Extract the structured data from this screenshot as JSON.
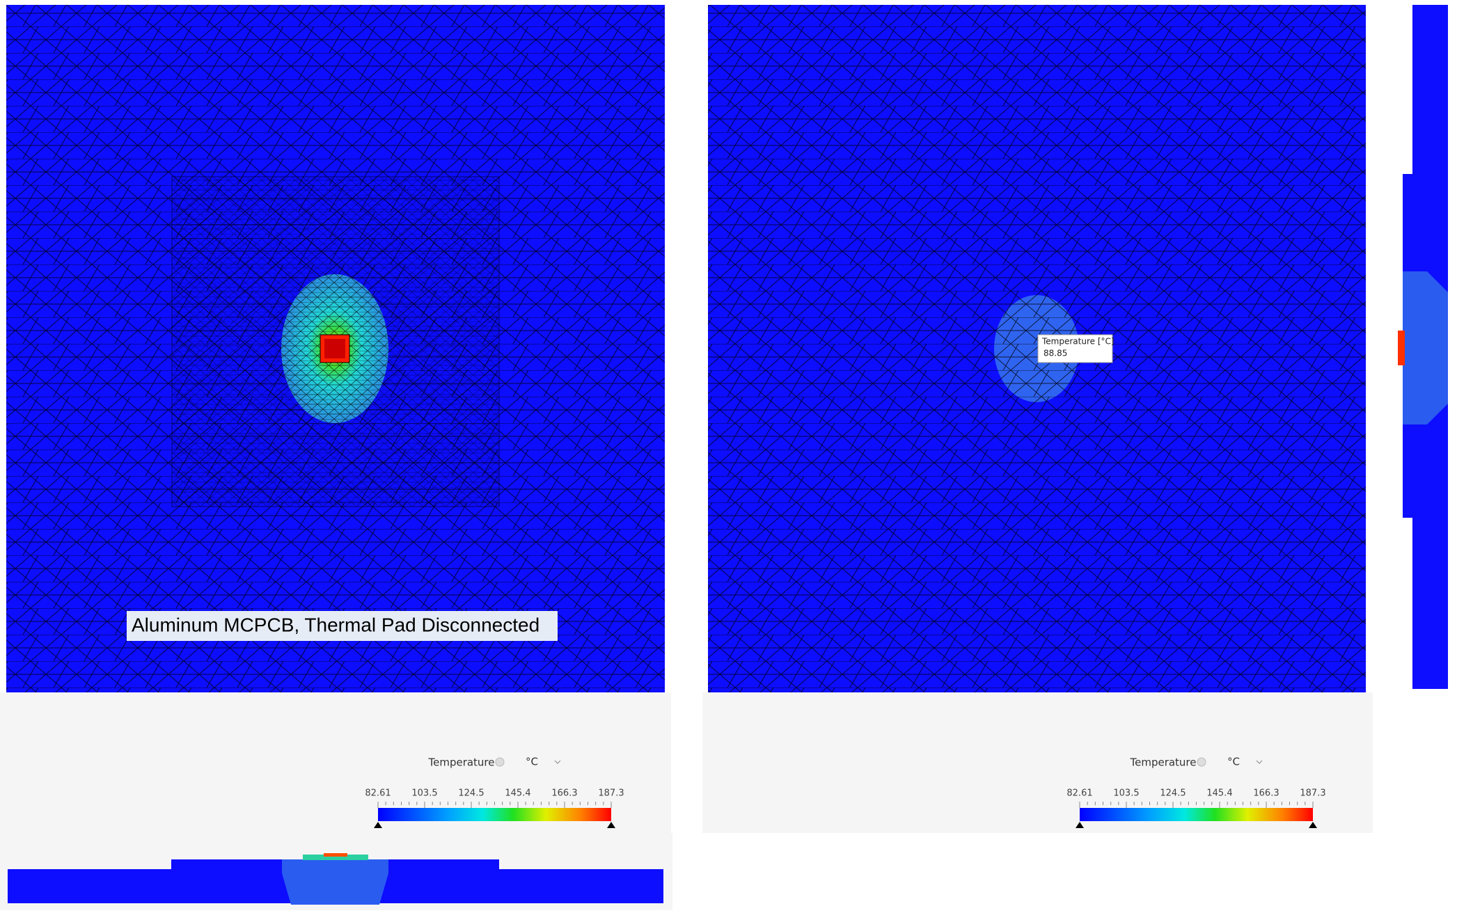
{
  "left_panel": {
    "caption": "Aluminum MCPCB, Thermal Pad Disconnected",
    "legend": {
      "title": "Temperature",
      "unit": "°C",
      "ticks": [
        82.61,
        103.5,
        124.5,
        145.4,
        166.3,
        187.3
      ]
    }
  },
  "right_panel": {
    "probe": {
      "label": "Temperature [°C]",
      "value": 88.85
    },
    "legend": {
      "title": "Temperature",
      "unit": "°C",
      "ticks": [
        82.61,
        103.5,
        124.5,
        145.4,
        166.3,
        187.3
      ]
    }
  }
}
